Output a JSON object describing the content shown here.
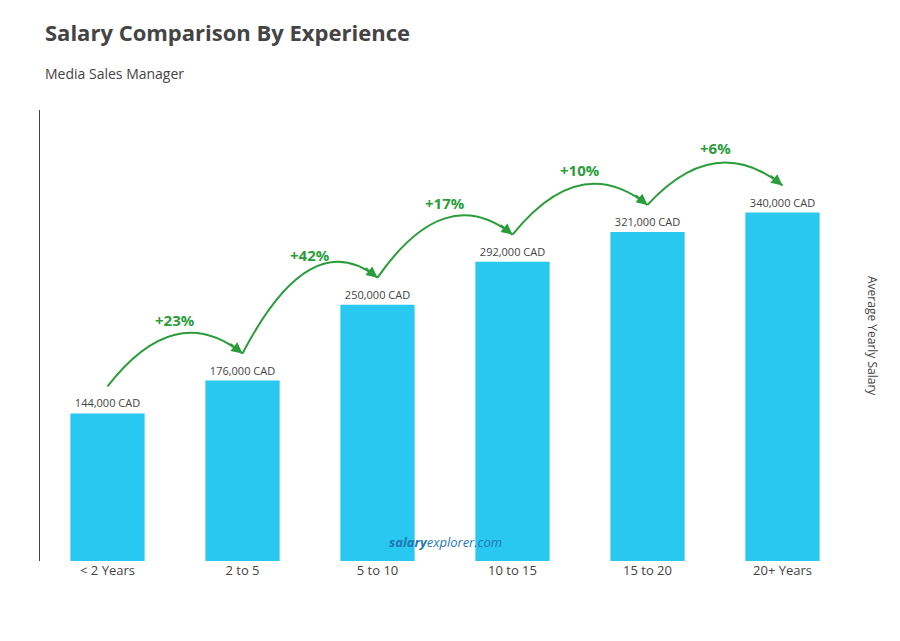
{
  "chart_data": {
    "type": "bar",
    "title": "Salary Comparison By Experience",
    "subtitle": "Media Sales Manager",
    "categories": [
      "< 2 Years",
      "2 to 5",
      "5 to 10",
      "10 to 15",
      "15 to 20",
      "20+ Years"
    ],
    "values": [
      144000,
      176000,
      250000,
      292000,
      321000,
      340000
    ],
    "value_labels": [
      "144,000 CAD",
      "176,000 CAD",
      "250,000 CAD",
      "292,000 CAD",
      "321,000 CAD",
      "340,000 CAD"
    ],
    "data_labels": true,
    "color": "#29c8f0",
    "ylim": [
      0,
      440000
    ],
    "ylabel": "Average Yearly Salary",
    "annotations": [
      "+23%",
      "+42%",
      "+17%",
      "+10%",
      "+6%"
    ],
    "footer": [
      "salary",
      "explorer.com"
    ],
    "tick_labels": "x",
    "grid": false
  }
}
